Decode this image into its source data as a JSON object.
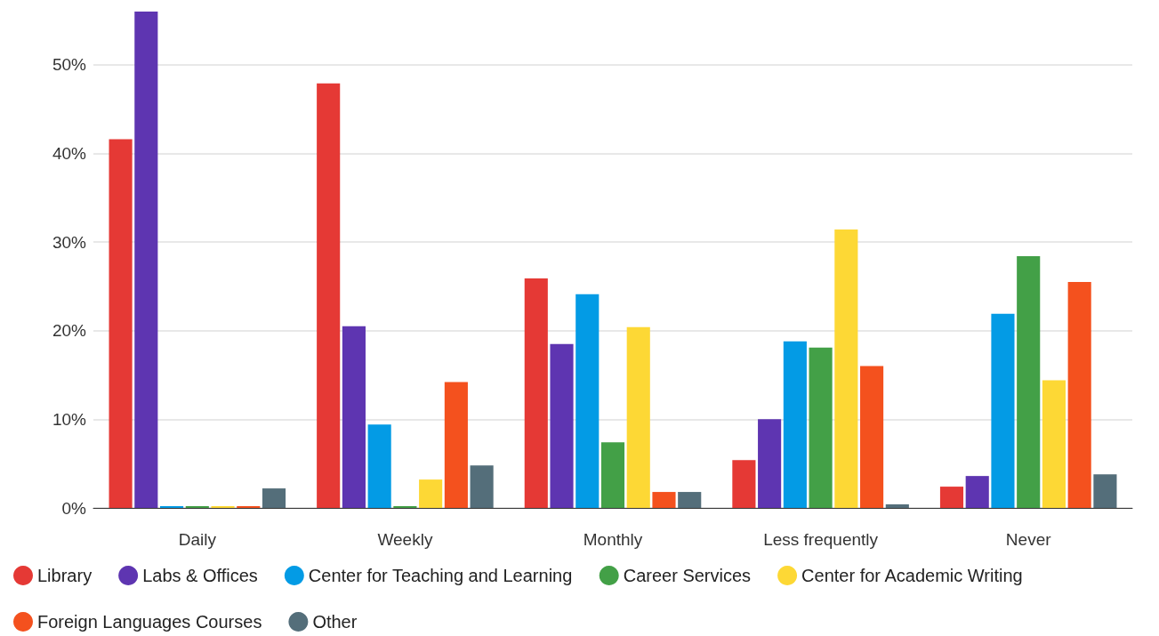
{
  "chart_data": {
    "type": "bar",
    "categories": [
      "Daily",
      "Weekly",
      "Monthly",
      "Less frequently",
      "Never"
    ],
    "series": [
      {
        "name": "Library",
        "color": "#e53935",
        "values": [
          41.6,
          47.9,
          25.9,
          5.4,
          2.4
        ]
      },
      {
        "name": "Labs & Offices",
        "color": "#5e35b1",
        "values": [
          56.0,
          20.5,
          18.5,
          10.0,
          3.6
        ]
      },
      {
        "name": "Center for Teaching and Learning",
        "color": "#039be5",
        "values": [
          0.2,
          9.4,
          24.1,
          18.8,
          21.9
        ]
      },
      {
        "name": "Career Services",
        "color": "#43a047",
        "values": [
          0.2,
          0.2,
          7.4,
          18.1,
          28.4
        ]
      },
      {
        "name": "Center for Academic Writing",
        "color": "#fdd835",
        "values": [
          0.2,
          3.2,
          20.4,
          31.4,
          14.4
        ]
      },
      {
        "name": "Foreign Languages Courses",
        "color": "#f4511e",
        "values": [
          0.2,
          14.2,
          1.8,
          16.0,
          25.5
        ]
      },
      {
        "name": "Other",
        "color": "#546e7a",
        "values": [
          2.2,
          4.8,
          1.8,
          0.4,
          3.8
        ]
      }
    ],
    "ylim": [
      0,
      56
    ],
    "yticks": [
      {
        "value": 0,
        "label": "0%"
      },
      {
        "value": 10,
        "label": "10%"
      },
      {
        "value": 20,
        "label": "20%"
      },
      {
        "value": 30,
        "label": "30%"
      },
      {
        "value": 40,
        "label": "40%"
      },
      {
        "value": 50,
        "label": "50%"
      }
    ],
    "grid": "y",
    "legend": "bottom left"
  }
}
